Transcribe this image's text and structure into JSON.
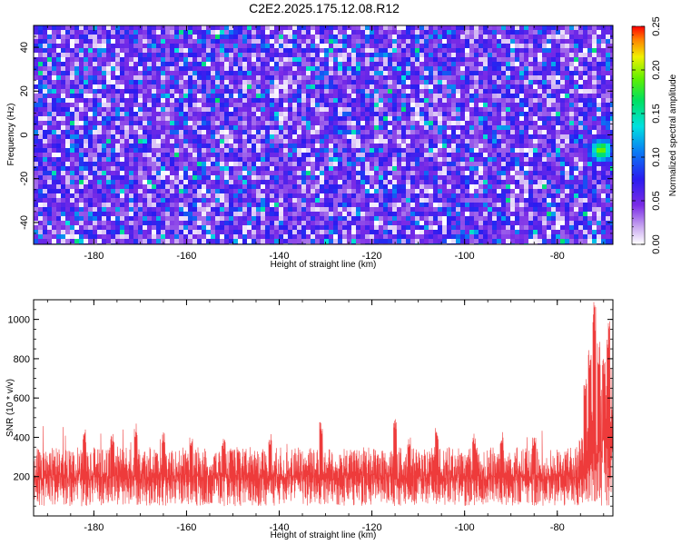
{
  "title": "C2E2.2025.175.12.08.R12",
  "chart_data": [
    {
      "type": "heatmap",
      "xlabel": "Height of straight line (km)",
      "ylabel": "Frequency (Hz)",
      "xlim": [
        -193,
        -68
      ],
      "ylim": [
        -50,
        50
      ],
      "xticks": [
        -180,
        -160,
        -140,
        -120,
        -100,
        -80
      ],
      "yticks": [
        -40,
        -20,
        0,
        20,
        40
      ],
      "colorbar": {
        "label": "Normalized spectral amplitude",
        "range": [
          0,
          0.25
        ],
        "ticks": [
          0.0,
          0.05,
          0.1,
          0.15,
          0.2,
          0.25
        ],
        "tick_labels": [
          "0.00",
          "0.05",
          "0.10",
          "0.15",
          "0.20",
          "0.25"
        ]
      },
      "background_level": 0.04,
      "hotspot": {
        "x": -71,
        "y": -6,
        "peak": 0.2
      }
    },
    {
      "type": "line",
      "xlabel": "Height of straight line (km)",
      "ylabel": "SNR (10 * v/v)",
      "xlim": [
        -193,
        -68
      ],
      "ylim": [
        0,
        1100
      ],
      "xticks": [
        -180,
        -160,
        -140,
        -120,
        -100,
        -80
      ],
      "yticks": [
        200,
        400,
        600,
        800,
        1000
      ],
      "series_color": "#ee3b3b",
      "baseline_range": [
        50,
        350
      ],
      "spikes": [
        {
          "x": -182,
          "y": 440
        },
        {
          "x": -176,
          "y": 420
        },
        {
          "x": -171,
          "y": 470
        },
        {
          "x": -165,
          "y": 430
        },
        {
          "x": -159,
          "y": 400
        },
        {
          "x": -152,
          "y": 400
        },
        {
          "x": -142,
          "y": 420
        },
        {
          "x": -131,
          "y": 480
        },
        {
          "x": -115,
          "y": 500
        },
        {
          "x": -112,
          "y": 400
        },
        {
          "x": -106,
          "y": 450
        },
        {
          "x": -98,
          "y": 420
        },
        {
          "x": -92,
          "y": 430
        },
        {
          "x": -85,
          "y": 400
        },
        {
          "x": -74,
          "y": 700
        },
        {
          "x": -73,
          "y": 850
        },
        {
          "x": -72,
          "y": 1100
        },
        {
          "x": -71,
          "y": 900
        },
        {
          "x": -70,
          "y": 800
        },
        {
          "x": -69,
          "y": 1000
        }
      ]
    }
  ]
}
